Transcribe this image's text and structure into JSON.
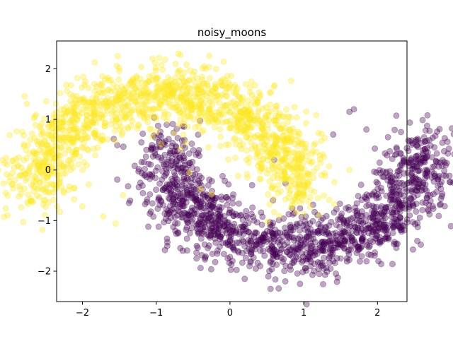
{
  "chart_data": {
    "type": "scatter",
    "title": "noisy_moons",
    "xlabel": "",
    "ylabel": "",
    "xlim": [
      -2.35,
      2.4
    ],
    "ylim": [
      -2.6,
      2.55
    ],
    "xticks": [
      -2,
      -1,
      0,
      1,
      2
    ],
    "yticks": [
      -2,
      -1,
      0,
      1,
      2
    ],
    "xtick_labels": [
      "−2",
      "−1",
      "0",
      "1",
      "2"
    ],
    "ytick_labels": [
      "−2",
      "−1",
      "0",
      "1",
      "2"
    ],
    "grid": false,
    "legend": false,
    "point_alpha": 0.35,
    "series": [
      {
        "color": "#fde725",
        "shape": "upper-moon",
        "center": [
          0,
          0
        ],
        "radius": 1,
        "noise": 0.3,
        "count": 1500,
        "x": [
          -2.12,
          -2.0,
          -1.85,
          -1.72,
          -1.55,
          -1.35,
          -1.05,
          -0.88,
          -0.7,
          -0.56,
          -0.35,
          -0.12,
          0.05,
          0.22,
          0.45,
          0.62,
          0.78,
          -0.55,
          -0.4,
          -0.25,
          -1.6,
          -1.45
        ],
        "y": [
          0.3,
          -0.72,
          0.72,
          -0.92,
          -1.06,
          1.72,
          2.2,
          2.18,
          2.3,
          1.62,
          2.05,
          1.76,
          1.35,
          1.1,
          0.9,
          0.55,
          0.62,
          -0.05,
          -0.38,
          -0.48,
          1.4,
          -0.5
        ]
      },
      {
        "color": "#440154",
        "shape": "lower-moon",
        "center": [
          1,
          0.5
        ],
        "radius": 1,
        "noise": 0.3,
        "count": 1500,
        "x": [
          -0.85,
          -0.7,
          -0.45,
          -0.2,
          0.0,
          0.2,
          0.35,
          0.55,
          0.75,
          0.95,
          1.2,
          1.4,
          1.55,
          1.68,
          1.85,
          2.05,
          2.2,
          1.62,
          1.4,
          0.3,
          0.6
        ],
        "y": [
          -0.88,
          -1.25,
          -1.5,
          -1.82,
          -1.72,
          -2.15,
          -1.95,
          -2.35,
          -2.2,
          -2.25,
          -1.95,
          -1.8,
          -1.55,
          1.2,
          0.8,
          -0.85,
          0.22,
          1.15,
          0.7,
          -0.3,
          0.2
        ]
      }
    ]
  }
}
